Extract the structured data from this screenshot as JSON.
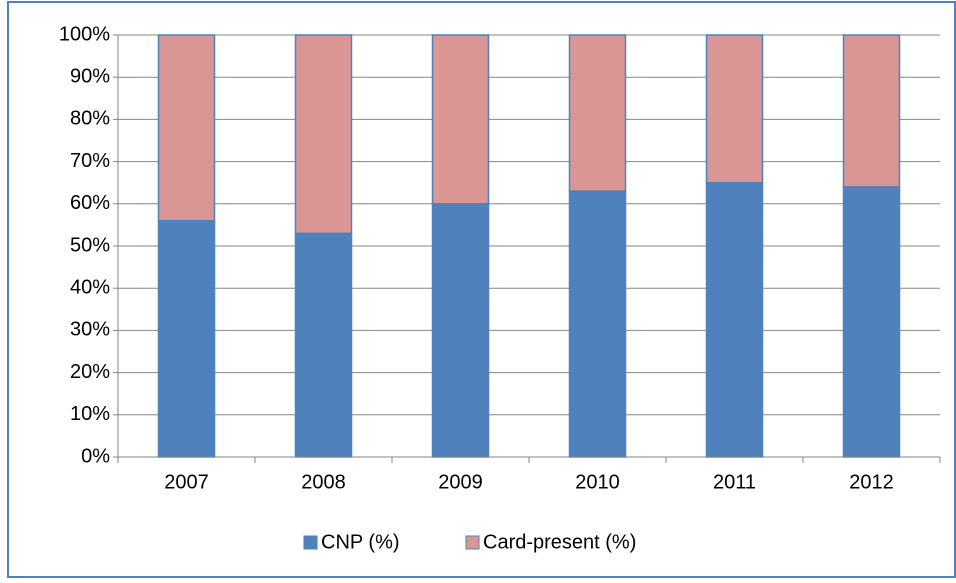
{
  "chart_data": {
    "type": "stacked_bar",
    "categories": [
      "2007",
      "2008",
      "2009",
      "2010",
      "2011",
      "2012"
    ],
    "series": [
      {
        "name": "CNP (%)",
        "color": "#4f81bd",
        "values": [
          56,
          53,
          60,
          63,
          65,
          64
        ]
      },
      {
        "name": "Card-present (%)",
        "color": "#d99694",
        "values": [
          44,
          47,
          40,
          37,
          35,
          36
        ]
      }
    ],
    "ylim": [
      0,
      100
    ],
    "yticks": [
      {
        "value": 0,
        "label": "0%"
      },
      {
        "value": 10,
        "label": "10%"
      },
      {
        "value": 20,
        "label": "20%"
      },
      {
        "value": 30,
        "label": "30%"
      },
      {
        "value": 40,
        "label": "40%"
      },
      {
        "value": 50,
        "label": "50%"
      },
      {
        "value": 60,
        "label": "60%"
      },
      {
        "value": 70,
        "label": "70%"
      },
      {
        "value": 80,
        "label": "80%"
      },
      {
        "value": 90,
        "label": "90%"
      },
      {
        "value": 100,
        "label": "100%"
      }
    ],
    "grid": true,
    "legend": "bottom"
  }
}
